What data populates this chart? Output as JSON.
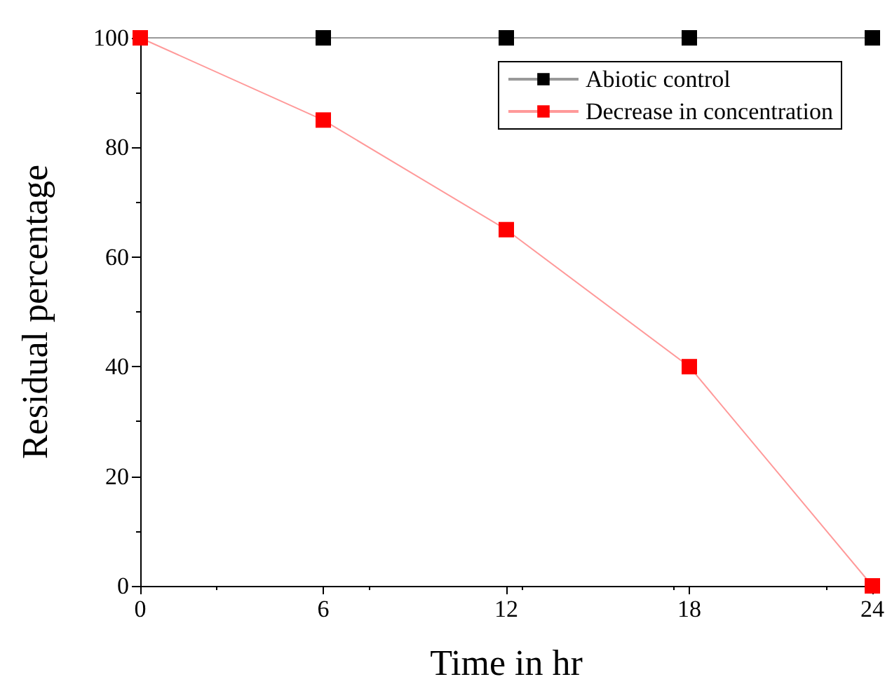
{
  "chart_data": {
    "type": "line",
    "xlabel": "Time in hr",
    "ylabel": "Residual percentage",
    "x": [
      0,
      6,
      12,
      18,
      24
    ],
    "series": [
      {
        "name": "Abiotic control",
        "color": "#000000",
        "values": [
          100,
          100,
          100,
          100,
          100
        ]
      },
      {
        "name": "Decrease in concentration",
        "color": "#ff0000",
        "values": [
          100,
          85,
          65,
          40,
          0
        ]
      }
    ],
    "xlim": [
      0,
      24
    ],
    "xticks": [
      0,
      6,
      12,
      18,
      24
    ],
    "ylim": [
      0,
      100
    ],
    "yticks": [
      0,
      20,
      40,
      60,
      80,
      100
    ],
    "grid": false,
    "legend": "top right",
    "marker": "square",
    "line_style": "solid"
  }
}
